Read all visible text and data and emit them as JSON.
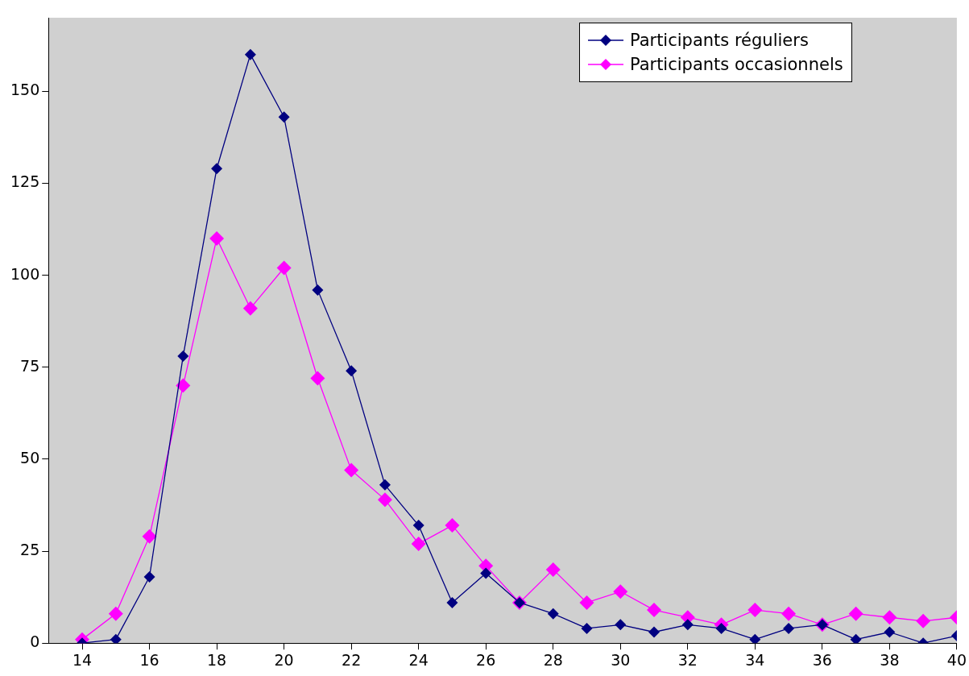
{
  "chart_data": {
    "type": "line",
    "x": [
      14,
      15,
      16,
      17,
      18,
      19,
      20,
      21,
      22,
      23,
      24,
      25,
      26,
      27,
      28,
      29,
      30,
      31,
      32,
      33,
      34,
      35,
      36,
      37,
      38,
      39,
      40
    ],
    "series": [
      {
        "name": "Participants réguliers",
        "color": "#000080",
        "values": [
          0,
          1,
          18,
          78,
          129,
          160,
          143,
          96,
          74,
          43,
          32,
          11,
          19,
          11,
          8,
          4,
          5,
          3,
          5,
          4,
          1,
          4,
          5,
          1,
          3,
          0,
          2
        ]
      },
      {
        "name": "Participants occasionnels",
        "color": "#ff00ff",
        "values": [
          1,
          8,
          29,
          70,
          110,
          91,
          102,
          72,
          47,
          39,
          27,
          32,
          21,
          11,
          20,
          11,
          14,
          9,
          7,
          5,
          9,
          8,
          5,
          8,
          7,
          6,
          7
        ]
      }
    ],
    "xlim": [
      13,
      40
    ],
    "xticks": [
      14,
      16,
      18,
      20,
      22,
      24,
      26,
      28,
      30,
      32,
      34,
      36,
      38,
      40
    ],
    "ylim": [
      0,
      170
    ],
    "yticks": [
      0,
      25,
      50,
      75,
      100,
      125,
      150
    ],
    "grid": false,
    "legend": "top right",
    "marker": "diamond",
    "line_style": "solid"
  }
}
